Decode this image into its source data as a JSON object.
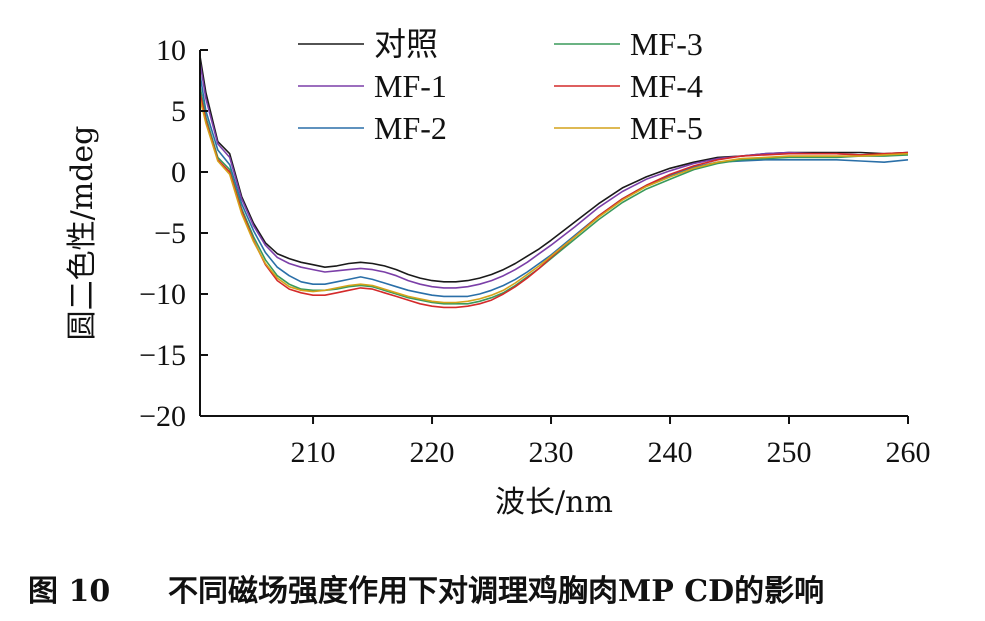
{
  "caption": {
    "figure_number": "图 10",
    "text": "不同磁场强度作用下对调理鸡胸肉MP CD的影响"
  },
  "chart_data": {
    "type": "line",
    "xlabel": "波长/nm",
    "ylabel": "圆二色性/mdeg",
    "xlim": [
      200.5,
      260
    ],
    "ylim": [
      -20,
      10
    ],
    "x_ticks": [
      210,
      220,
      230,
      240,
      250,
      260
    ],
    "y_ticks": [
      10,
      5,
      0,
      -5,
      -10,
      -15,
      -20
    ],
    "y_tick_labels": [
      "10",
      "5",
      "0",
      "−5",
      "−10",
      "−15",
      "−20"
    ],
    "legend_position": "top-center",
    "x": [
      200.5,
      201,
      202,
      203,
      204,
      205,
      206,
      207,
      208,
      209,
      210,
      211,
      212,
      213,
      214,
      215,
      216,
      217,
      218,
      219,
      220,
      221,
      222,
      223,
      224,
      225,
      226,
      227,
      228,
      229,
      230,
      232,
      234,
      236,
      238,
      240,
      242,
      244,
      246,
      248,
      250,
      252,
      254,
      256,
      258,
      260
    ],
    "series": [
      {
        "name": "对照",
        "color": "#1a1a1a",
        "values": [
          9.5,
          6.5,
          2.5,
          1.5,
          -2.0,
          -4.2,
          -5.8,
          -6.7,
          -7.1,
          -7.4,
          -7.6,
          -7.8,
          -7.7,
          -7.5,
          -7.4,
          -7.5,
          -7.7,
          -8.0,
          -8.4,
          -8.7,
          -8.9,
          -9.0,
          -9.0,
          -8.9,
          -8.7,
          -8.4,
          -8.0,
          -7.5,
          -6.9,
          -6.3,
          -5.6,
          -4.1,
          -2.6,
          -1.3,
          -0.4,
          0.3,
          0.8,
          1.2,
          1.3,
          1.5,
          1.6,
          1.6,
          1.6,
          1.6,
          1.5,
          1.6
        ]
      },
      {
        "name": "MF-1",
        "color": "#7b3fa8",
        "values": [
          9.0,
          6.0,
          2.3,
          1.2,
          -2.2,
          -4.4,
          -6.0,
          -7.0,
          -7.5,
          -7.8,
          -8.0,
          -8.2,
          -8.1,
          -8.0,
          -7.9,
          -8.0,
          -8.2,
          -8.5,
          -8.9,
          -9.2,
          -9.4,
          -9.5,
          -9.5,
          -9.4,
          -9.2,
          -8.9,
          -8.5,
          -8.0,
          -7.4,
          -6.7,
          -6.0,
          -4.5,
          -2.9,
          -1.6,
          -0.6,
          0.1,
          0.7,
          1.1,
          1.3,
          1.5,
          1.6,
          1.5,
          1.5,
          1.4,
          1.4,
          1.6
        ]
      },
      {
        "name": "MF-2",
        "color": "#2a6fa8",
        "values": [
          8.0,
          5.0,
          1.8,
          0.6,
          -2.6,
          -4.8,
          -6.6,
          -7.8,
          -8.5,
          -9.0,
          -9.2,
          -9.2,
          -9.0,
          -8.8,
          -8.6,
          -8.8,
          -9.1,
          -9.4,
          -9.7,
          -9.9,
          -10.1,
          -10.2,
          -10.2,
          -10.2,
          -10.0,
          -9.7,
          -9.3,
          -8.8,
          -8.2,
          -7.5,
          -6.8,
          -5.2,
          -3.6,
          -2.2,
          -1.1,
          -0.3,
          0.4,
          0.8,
          0.9,
          1.0,
          1.0,
          1.0,
          1.0,
          0.9,
          0.8,
          1.0
        ]
      },
      {
        "name": "MF-3",
        "color": "#3a9a5a",
        "values": [
          7.0,
          4.5,
          1.2,
          0.2,
          -3.0,
          -5.3,
          -7.2,
          -8.5,
          -9.2,
          -9.6,
          -9.7,
          -9.7,
          -9.6,
          -9.4,
          -9.3,
          -9.4,
          -9.7,
          -10.0,
          -10.3,
          -10.5,
          -10.7,
          -10.8,
          -10.8,
          -10.8,
          -10.6,
          -10.3,
          -9.9,
          -9.3,
          -8.6,
          -7.9,
          -7.1,
          -5.5,
          -3.9,
          -2.5,
          -1.4,
          -0.6,
          0.2,
          0.7,
          1.0,
          1.1,
          1.2,
          1.2,
          1.2,
          1.3,
          1.3,
          1.4
        ]
      },
      {
        "name": "MF-4",
        "color": "#d42a2a",
        "values": [
          6.5,
          4.2,
          1.0,
          0.0,
          -3.2,
          -5.6,
          -7.6,
          -8.9,
          -9.6,
          -9.9,
          -10.1,
          -10.1,
          -9.9,
          -9.7,
          -9.5,
          -9.6,
          -9.9,
          -10.2,
          -10.5,
          -10.8,
          -11.0,
          -11.1,
          -11.1,
          -11.0,
          -10.8,
          -10.5,
          -10.0,
          -9.4,
          -8.7,
          -7.9,
          -7.0,
          -5.3,
          -3.6,
          -2.2,
          -1.1,
          -0.2,
          0.5,
          1.0,
          1.3,
          1.4,
          1.5,
          1.5,
          1.5,
          1.4,
          1.5,
          1.6
        ]
      },
      {
        "name": "MF-5",
        "color": "#d4a21a",
        "values": [
          6.0,
          4.0,
          0.9,
          -0.2,
          -3.4,
          -5.7,
          -7.5,
          -8.7,
          -9.4,
          -9.7,
          -9.8,
          -9.7,
          -9.5,
          -9.3,
          -9.2,
          -9.3,
          -9.6,
          -9.9,
          -10.2,
          -10.4,
          -10.6,
          -10.7,
          -10.7,
          -10.6,
          -10.4,
          -10.1,
          -9.7,
          -9.1,
          -8.4,
          -7.7,
          -6.9,
          -5.3,
          -3.7,
          -2.3,
          -1.2,
          -0.4,
          0.3,
          0.8,
          1.1,
          1.2,
          1.3,
          1.3,
          1.3,
          1.3,
          1.4,
          1.5
        ]
      }
    ]
  }
}
